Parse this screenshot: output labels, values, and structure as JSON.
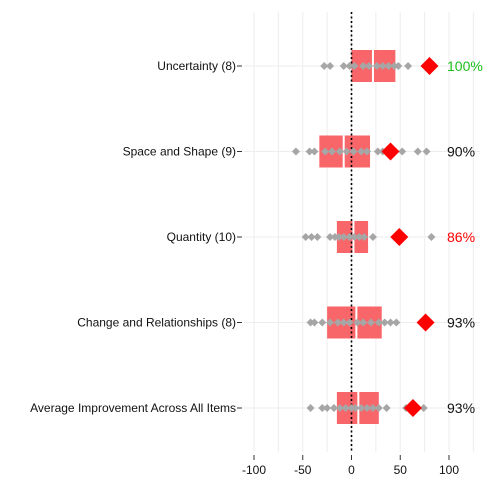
{
  "colors": {
    "box": "#F8666A",
    "median_line": "#ffffff",
    "dots": "#a6a6a6",
    "mean_marker": "#ff0000",
    "zero_line": "#000000",
    "grid": "#ededed",
    "pct_default": "#111111"
  },
  "chart_data": {
    "type": "boxplot",
    "title": "",
    "xlabel": "",
    "ylabel": "",
    "xlim": [
      -100,
      125
    ],
    "xticks": [
      -100,
      -50,
      0,
      50,
      100
    ],
    "tick_labels": [
      "-100",
      "-50",
      "0",
      "50",
      "100"
    ],
    "grid": true,
    "reference_line": 0,
    "categories": [
      {
        "label": "Uncertainty (8)",
        "box": {
          "q1": 0,
          "median": 22,
          "q3": 45
        },
        "points": [
          -28,
          -22,
          -8,
          -2,
          3,
          12,
          18,
          26,
          32,
          38,
          44,
          48,
          58
        ],
        "mean": 80,
        "pct": "100%",
        "pct_color": "#1cbf1c"
      },
      {
        "label": "Space and Shape (9)",
        "box": {
          "q1": -33,
          "median": -8,
          "q3": 19
        },
        "points": [
          -57,
          -43,
          -38,
          -27,
          -20,
          -12,
          -5,
          2,
          10,
          16,
          27,
          32,
          52,
          68,
          77
        ],
        "mean": 40,
        "pct": "90%",
        "pct_color": "#111111"
      },
      {
        "label": "Quantity (10)",
        "box": {
          "q1": -15,
          "median": 2,
          "q3": 17
        },
        "points": [
          -47,
          -41,
          -35,
          -22,
          -17,
          -13,
          -8,
          -2,
          3,
          8,
          13,
          22,
          82
        ],
        "mean": 49,
        "pct": "86%",
        "pct_color": "#ff0000"
      },
      {
        "label": "Change and Relationships (8)",
        "box": {
          "q1": -25,
          "median": 5,
          "q3": 31
        },
        "points": [
          -42,
          -38,
          -30,
          -22,
          -14,
          -8,
          -2,
          6,
          12,
          20,
          28,
          34,
          40,
          46
        ],
        "mean": 76,
        "pct": "93%",
        "pct_color": "#111111"
      },
      {
        "label": "Average Improvement Across All Items",
        "box": {
          "q1": -15,
          "median": 7,
          "q3": 28
        },
        "points": [
          -42,
          -30,
          -25,
          -18,
          -12,
          -6,
          0,
          4,
          10,
          16,
          22,
          28,
          36,
          56,
          60,
          74
        ],
        "mean": 63,
        "pct": "93%",
        "pct_color": "#111111"
      }
    ]
  }
}
